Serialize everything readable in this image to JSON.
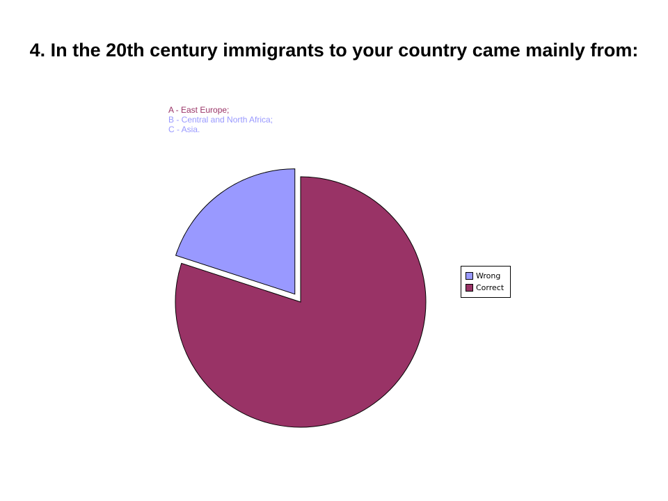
{
  "slide": {
    "title": "4. In the 20th century immigrants to your country came mainly from:",
    "options": [
      {
        "text": "A - East Europe;",
        "color": "#993366"
      },
      {
        "text": "B - Central and North Africa;",
        "color": "#9999FF"
      },
      {
        "text": "C - Asia.",
        "color": "#9999FF"
      }
    ]
  },
  "chart_data": {
    "type": "pie",
    "title": "",
    "slices": [
      {
        "name": "Wrong",
        "value": 20,
        "color": "#9999FF",
        "exploded": true
      },
      {
        "name": "Correct",
        "value": 80,
        "color": "#993366",
        "exploded": false
      }
    ],
    "start_angle_deg": 0,
    "direction": "counterclockwise",
    "legend": {
      "placement": "right",
      "entries": [
        "Wrong",
        "Correct"
      ]
    }
  }
}
